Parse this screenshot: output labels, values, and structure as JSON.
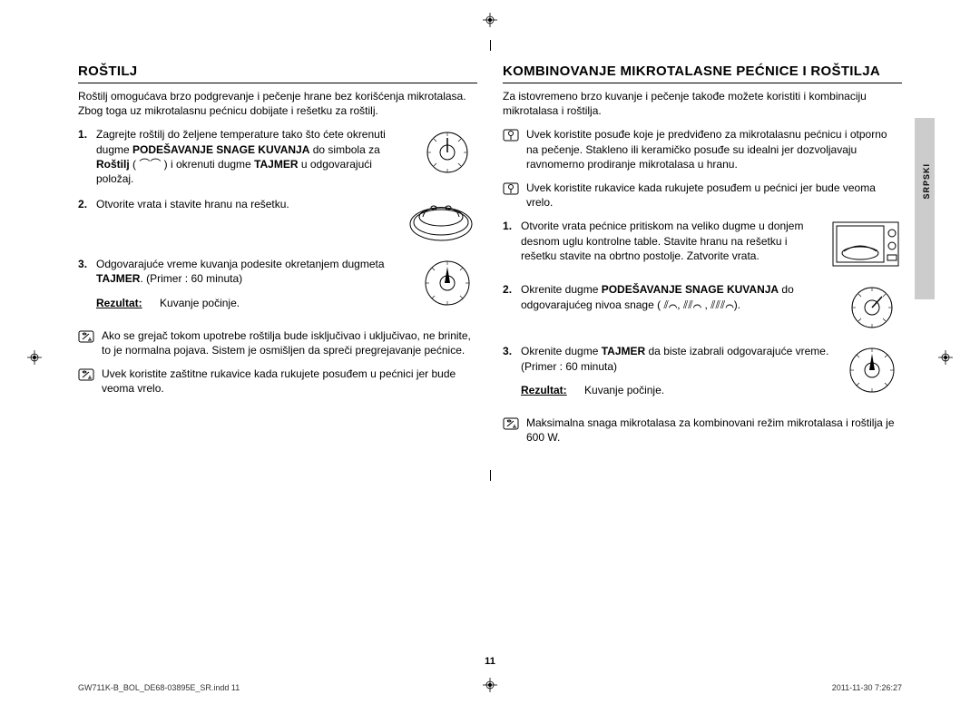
{
  "registration_color": "#000000",
  "left": {
    "title": "ROŠTILJ",
    "intro": "Roštilj omogućava brzo podgrevanje i pečenje hrane bez korišćenja mikrotalasa. Zbog toga uz mikrotalasnu pećnicu dobijate i rešetku za roštilj.",
    "steps": [
      {
        "html": "Zagrejte roštilj do željene temperature tako što ćete okrenuti dugme <b>PODEŠAVANJE SNAGE KUVANJA</b> do simbola za <b>Roštilj</b> ( ⌒⌒ ) i okrenuti dugme <b>TAJMER</b> u odgovarajući položaj.",
        "illus": "dial"
      },
      {
        "html": "Otvorite vrata i stavite hranu na rešetku.",
        "illus": "pan"
      },
      {
        "html": "Odgovarajuće vreme kuvanja podesite okretanjem dugmeta <b>TAJMER</b>. (Primer : 60 minuta)",
        "illus": "timer",
        "result_label": "Rezultat:",
        "result_text": "Kuvanje počinje."
      }
    ],
    "notes": [
      "Ako se grejač tokom upotrebe roštilja bude isključivao i uključivao, ne brinite, to je normalna pojava. Sistem je osmišljen da spreči pregrejavanje pećnice.",
      "Uvek koristite zaštitne rukavice kada rukujete posuđem u pećnici jer bude veoma vrelo."
    ]
  },
  "right": {
    "title": "KOMBINOVANJE MIKROTALASNE PEĆNICE I ROŠTILJA",
    "intro": "Za istovremeno brzo kuvanje i pečenje takođe možete koristiti i kombinaciju mikrotalasa i roštilja.",
    "pre_notes": [
      "Uvek koristite posuđe koje je predviđeno za mikrotalasnu pećnicu i otporno na pečenje. Stakleno ili keramičko posuđe su idealni jer dozvoljavaju ravnomerno prodiranje mikrotalasa u hranu.",
      "Uvek koristite rukavice kada rukujete posuđem u pećnici jer bude veoma vrelo."
    ],
    "steps": [
      {
        "html": "Otvorite vrata pećnice pritiskom na veliko dugme u donjem desnom uglu kontrolne table. Stavite hranu na rešetku i rešetku stavite na obrtno postolje. Zatvorite vrata.",
        "illus": "oven"
      },
      {
        "html": "Okrenite dugme <b>PODEŠAVANJE SNAGE KUVANJA</b> do odgovarajućeg nivoa snage ( ⫽⌒, ⫽⫽⌒ , ⫽⫽⫽⌒).",
        "illus": "dial"
      },
      {
        "html": "Okrenite dugme <b>TAJMER</b> da biste izabrali odgovarajuće vreme. (Primer : 60 minuta)",
        "illus": "timer",
        "result_label": "Rezultat:",
        "result_text": "Kuvanje počinje."
      }
    ],
    "post_notes": [
      "Maksimalna snaga mikrotalasa za kombinovani režim mikrotalasa i roštilja je 600 W."
    ]
  },
  "side_tab": "SRPSKI",
  "page_number": "11",
  "footer_left": "GW711K-B_BOL_DE68-03895E_SR.indd   11",
  "footer_right": "2011-11-30   7:26:27"
}
